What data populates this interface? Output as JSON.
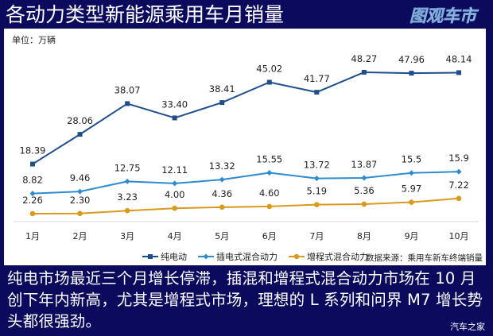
{
  "header": {
    "title": "各动力类型新能源乘用车月销量",
    "logo_text": "图观车市"
  },
  "panel": {
    "unit": "单位：万辆",
    "source": "数据来源：乘用车新车终端销量"
  },
  "caption": "纯电市场最近三个月增长停滞，插混和增程式混合动力市场在 10 月创下年内新高，尤其是增程式市场，理想的 L 系列和问界 M7 增长势头都很强劲。",
  "watermark": "汽车之家",
  "colors": {
    "background": "#0b0a5c",
    "bev": "#1f4e8c",
    "phev": "#2e8bd0",
    "erev": "#d99a1c"
  },
  "chart_data": {
    "type": "line",
    "title": "各动力类型新能源乘用车月销量",
    "ylabel": "单位：万辆",
    "xlabel": "",
    "categories": [
      "1月",
      "2月",
      "3月",
      "4月",
      "5月",
      "6月",
      "7月",
      "8月",
      "9月",
      "10月"
    ],
    "series": [
      {
        "name": "纯电动",
        "marker": "square",
        "color": "#1f4e8c",
        "values": [
          18.39,
          28.06,
          38.07,
          33.4,
          38.41,
          45.02,
          41.77,
          48.27,
          47.96,
          48.14
        ],
        "labels": [
          "18.39",
          "28.06",
          "38.07",
          "33.40",
          "38.41",
          "45.02",
          "41.77",
          "48.27",
          "47.96",
          "48.14"
        ]
      },
      {
        "name": "插电式混合动力",
        "marker": "diamond",
        "color": "#2e8bd0",
        "values": [
          8.82,
          9.46,
          12.75,
          12.11,
          13.32,
          15.55,
          13.72,
          13.87,
          15.5,
          15.9
        ],
        "labels": [
          "8.82",
          "9.46",
          "12.75",
          "12.11",
          "13.32",
          "15.55",
          "13.72",
          "13.87",
          "15.5",
          "15.9"
        ]
      },
      {
        "name": "增程式混合动力",
        "marker": "circle",
        "color": "#d99a1c",
        "values": [
          2.26,
          2.3,
          3.23,
          4.0,
          4.36,
          4.6,
          5.19,
          5.36,
          5.97,
          7.22
        ],
        "labels": [
          "2.26",
          "2.30",
          "3.23",
          "4.00",
          "4.36",
          "4.60",
          "5.19",
          "5.36",
          "5.97",
          "7.22"
        ]
      }
    ],
    "grid": false,
    "legend_position": "bottom",
    "source": "数据来源：乘用车新车终端销量"
  }
}
